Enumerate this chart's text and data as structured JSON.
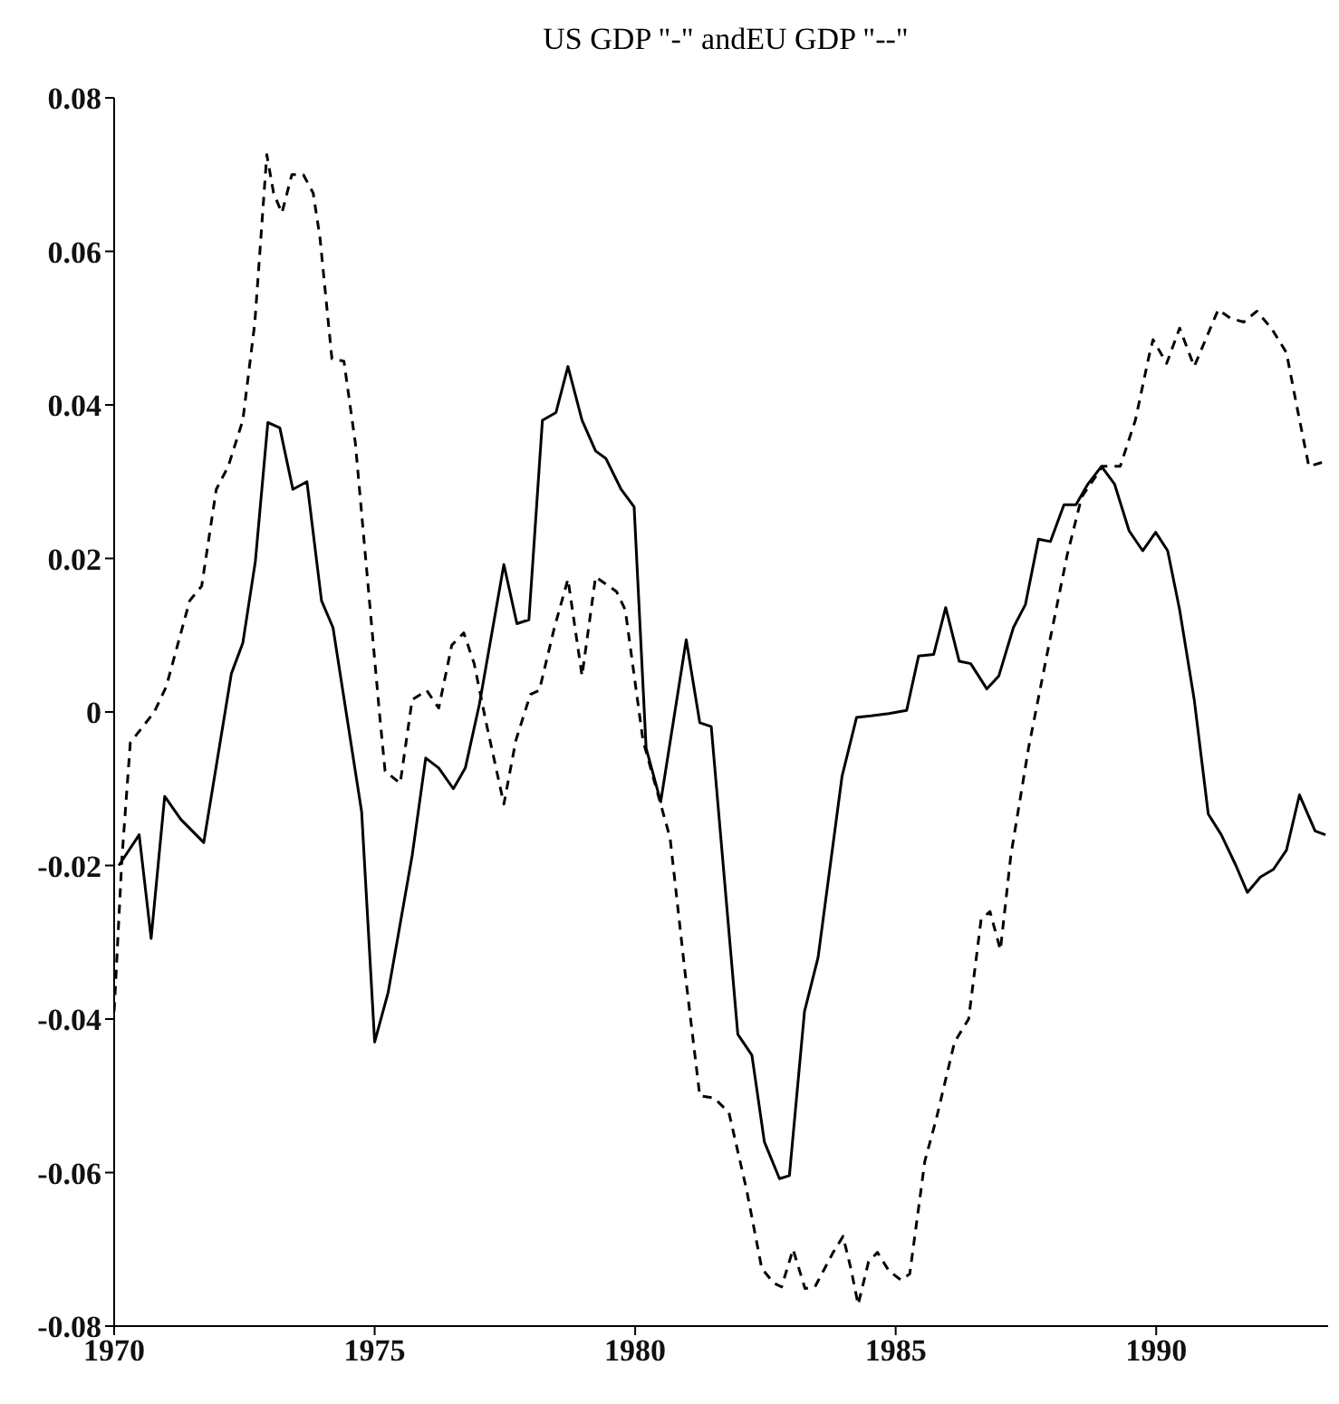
{
  "chart_data": {
    "type": "line",
    "title": "US GDP \"-\" andEU GDP \"--\"",
    "xlim": [
      1970,
      1993.3
    ],
    "xticks": [
      1970,
      1975,
      1980,
      1985,
      1990
    ],
    "ylim": [
      -0.08,
      0.08
    ],
    "yticks": [
      -0.08,
      -0.06,
      -0.04,
      -0.02,
      0,
      0.02,
      0.04,
      0.06,
      0.08
    ],
    "grid": false,
    "legend": false,
    "marker": "none",
    "series": [
      {
        "color": "#000000",
        "line_style": "solid",
        "x": [
          1970.09,
          1970.48,
          1970.71,
          1970.97,
          1971.28,
          1971.72,
          1972.25,
          1972.47,
          1972.71,
          1972.95,
          1973.18,
          1973.43,
          1973.7,
          1973.98,
          1974.2,
          1974.75,
          1975.0,
          1975.26,
          1975.72,
          1975.98,
          1976.23,
          1976.51,
          1976.74,
          1977.01,
          1977.48,
          1977.73,
          1977.96,
          1978.22,
          1978.48,
          1978.71,
          1978.98,
          1979.24,
          1979.44,
          1979.73,
          1979.98,
          1980.21,
          1980.49,
          1980.98,
          1981.24,
          1981.46,
          1981.97,
          1982.24,
          1982.48,
          1982.77,
          1982.96,
          1983.25,
          1983.51,
          1983.97,
          1984.25,
          1984.53,
          1984.87,
          1985.21,
          1985.44,
          1985.73,
          1985.96,
          1986.22,
          1986.44,
          1986.75,
          1986.98,
          1987.26,
          1987.49,
          1987.74,
          1987.97,
          1988.23,
          1988.46,
          1988.69,
          1988.95,
          1989.2,
          1989.48,
          1989.74,
          1989.99,
          1990.22,
          1990.45,
          1990.73,
          1991.0,
          1991.25,
          1991.53,
          1991.75,
          1992.0,
          1992.25,
          1992.5,
          1992.75,
          1993.05,
          1993.25
        ],
        "values": [
          -0.02,
          -0.016,
          -0.0295,
          -0.011,
          -0.014,
          -0.017,
          0.005,
          0.009,
          0.0196,
          0.0377,
          0.037,
          0.029,
          0.03,
          0.0145,
          0.011,
          -0.013,
          -0.043,
          -0.0365,
          -0.0187,
          -0.006,
          -0.0073,
          -0.01,
          -0.0073,
          0.001,
          0.0192,
          0.0115,
          0.012,
          0.038,
          0.039,
          0.045,
          0.038,
          0.034,
          0.033,
          0.029,
          0.0267,
          -0.0047,
          -0.0117,
          0.0094,
          -0.0014,
          -0.0019,
          -0.042,
          -0.0447,
          -0.056,
          -0.0608,
          -0.0604,
          -0.039,
          -0.032,
          -0.0084,
          -0.0007,
          -0.0005,
          -0.0002,
          0.0002,
          0.0073,
          0.0075,
          0.0136,
          0.0066,
          0.0063,
          0.003,
          0.0047,
          0.011,
          0.014,
          0.0225,
          0.0222,
          0.027,
          0.027,
          0.0297,
          0.032,
          0.0297,
          0.0236,
          0.021,
          0.0234,
          0.021,
          0.0133,
          0.0016,
          -0.0133,
          -0.016,
          -0.02,
          -0.0235,
          -0.0215,
          -0.0205,
          -0.018,
          -0.0108,
          -0.0155,
          -0.016
        ]
      },
      {
        "color": "#000000",
        "line_style": "dashed",
        "x": [
          1970.0,
          1970.15,
          1970.31,
          1970.77,
          1971.0,
          1971.45,
          1971.68,
          1971.96,
          1972.19,
          1972.47,
          1972.7,
          1972.93,
          1973.06,
          1973.22,
          1973.41,
          1973.63,
          1973.82,
          1973.95,
          1974.18,
          1974.41,
          1974.63,
          1975.09,
          1975.2,
          1975.49,
          1975.72,
          1976.0,
          1976.23,
          1976.48,
          1976.71,
          1976.91,
          1977.14,
          1977.48,
          1977.71,
          1977.99,
          1978.16,
          1978.45,
          1978.71,
          1978.98,
          1979.24,
          1979.64,
          1979.81,
          1980.15,
          1980.44,
          1980.67,
          1980.95,
          1981.24,
          1981.52,
          1981.8,
          1982.14,
          1982.43,
          1982.66,
          1982.81,
          1983.03,
          1983.26,
          1983.45,
          1983.8,
          1983.99,
          1984.14,
          1984.28,
          1984.48,
          1984.65,
          1984.87,
          1985.1,
          1985.27,
          1985.56,
          1985.78,
          1986.13,
          1986.4,
          1986.64,
          1986.81,
          1987.01,
          1987.21,
          1987.55,
          1987.89,
          1988.29,
          1988.57,
          1988.97,
          1989.31,
          1989.6,
          1989.86,
          1989.94,
          1990.2,
          1990.45,
          1990.73,
          1991.19,
          1991.42,
          1991.68,
          1991.93,
          1992.21,
          1992.5,
          1992.7,
          1992.93,
          1993.18
        ],
        "values": [
          -0.039,
          -0.019,
          -0.004,
          0,
          0.0033,
          0.0145,
          0.0164,
          0.029,
          0.032,
          0.038,
          0.0507,
          0.0726,
          0.0676,
          0.065,
          0.07,
          0.07,
          0.0676,
          0.0618,
          0.046,
          0.0457,
          0.035,
          0,
          -0.0077,
          -0.0093,
          0.0016,
          0.0028,
          0.0005,
          0.0087,
          0.0103,
          0.0063,
          -0.0014,
          -0.012,
          -0.0037,
          0.0023,
          0.0028,
          0.011,
          0.0173,
          0.0047,
          0.0176,
          0.0157,
          0.0133,
          -0.0037,
          -0.0108,
          -0.0164,
          -0.0335,
          -0.05,
          -0.0503,
          -0.0522,
          -0.0623,
          -0.0725,
          -0.0744,
          -0.0749,
          -0.07,
          -0.0751,
          -0.0749,
          -0.0704,
          -0.0683,
          -0.0725,
          -0.0772,
          -0.0716,
          -0.0704,
          -0.0728,
          -0.074,
          -0.0732,
          -0.0585,
          -0.053,
          -0.043,
          -0.04,
          -0.027,
          -0.026,
          -0.031,
          -0.0187,
          -0.0047,
          0.007,
          0.0204,
          0.028,
          0.032,
          0.032,
          0.038,
          0.0463,
          0.0485,
          0.0454,
          0.05,
          0.045,
          0.0524,
          0.0513,
          0.0508,
          0.0522,
          0.05,
          0.0468,
          0.0398,
          0.032,
          0.0325
        ]
      }
    ]
  }
}
